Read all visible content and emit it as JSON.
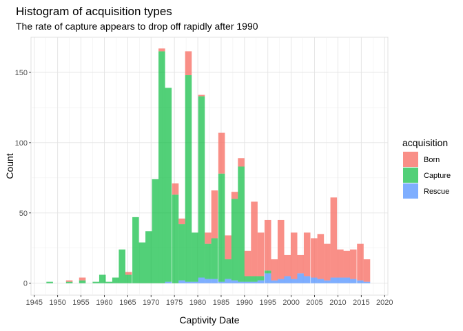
{
  "chart_data": {
    "type": "bar",
    "stacked": true,
    "title": "Histogram of acquisition types",
    "subtitle": "The rate of capture appears to drop off rapidly after 1990",
    "xlabel": "Captivity Date",
    "ylabel": "Count",
    "xlim": [
      1944.3,
      2020.7
    ],
    "ylim": [
      -8.5,
      175
    ],
    "bin_width": 1.413,
    "x_ticks": [
      1945,
      1950,
      1955,
      1960,
      1965,
      1970,
      1975,
      1980,
      1985,
      1990,
      1995,
      2000,
      2005,
      2010,
      2015,
      2020
    ],
    "y_ticks": [
      0,
      50,
      100,
      150
    ],
    "grid": true,
    "legend": {
      "title": "acquisition",
      "position": "right",
      "entries": [
        {
          "name": "Born",
          "color": "#F8766D"
        },
        {
          "name": "Capture",
          "color": "#00BA38"
        },
        {
          "name": "Rescue",
          "color": "#619CFF"
        }
      ]
    },
    "x": [
      1948.3,
      1949.7,
      1951.1,
      1952.5,
      1953.9,
      1955.3,
      1956.8,
      1958.2,
      1959.6,
      1961.0,
      1962.4,
      1963.8,
      1965.2,
      1966.7,
      1968.1,
      1969.5,
      1970.9,
      1972.3,
      1973.7,
      1975.2,
      1976.6,
      1978.0,
      1979.4,
      1980.8,
      1982.2,
      1983.6,
      1985.1,
      1986.5,
      1987.9,
      1989.3,
      1990.7,
      1992.1,
      1993.5,
      1995.0,
      1996.4,
      1997.8,
      1999.2,
      2000.6,
      2002.0,
      2003.4,
      2004.9,
      2006.3,
      2007.7,
      2009.1,
      2010.5,
      2011.9,
      2013.3,
      2014.8,
      2016.2
    ],
    "series": [
      {
        "name": "Rescue",
        "values": [
          0,
          0,
          0,
          0,
          0,
          0,
          0,
          0,
          0,
          0,
          0,
          0,
          0,
          0,
          0,
          0,
          0,
          0,
          1,
          0,
          2,
          1,
          1,
          4,
          3,
          3,
          1,
          3,
          2,
          1,
          1,
          1,
          2,
          7,
          2,
          3,
          5,
          3,
          7,
          5,
          4,
          3,
          2,
          4,
          4,
          4,
          3,
          2,
          1
        ]
      },
      {
        "name": "Capture",
        "values": [
          1,
          0,
          0,
          1,
          0,
          2,
          0,
          1,
          6,
          1,
          4,
          24,
          6,
          47,
          29,
          37,
          74,
          165,
          138,
          63,
          40,
          147,
          35,
          129,
          25,
          29,
          77,
          14,
          58,
          82,
          4,
          4,
          3,
          2,
          0,
          0,
          0,
          0,
          0,
          0,
          0,
          0,
          0,
          0,
          0,
          0,
          0,
          0,
          0
        ]
      },
      {
        "name": "Born",
        "values": [
          0,
          0,
          0,
          1,
          0,
          2,
          0,
          0,
          0,
          0,
          0,
          0,
          2,
          0,
          0,
          0,
          0,
          2,
          0,
          8,
          4,
          17,
          0,
          1,
          8,
          34,
          29,
          17,
          5,
          6,
          18,
          53,
          31,
          36,
          15,
          42,
          15,
          33,
          13,
          31,
          28,
          32,
          26,
          57,
          20,
          19,
          21,
          26,
          16
        ]
      }
    ]
  }
}
